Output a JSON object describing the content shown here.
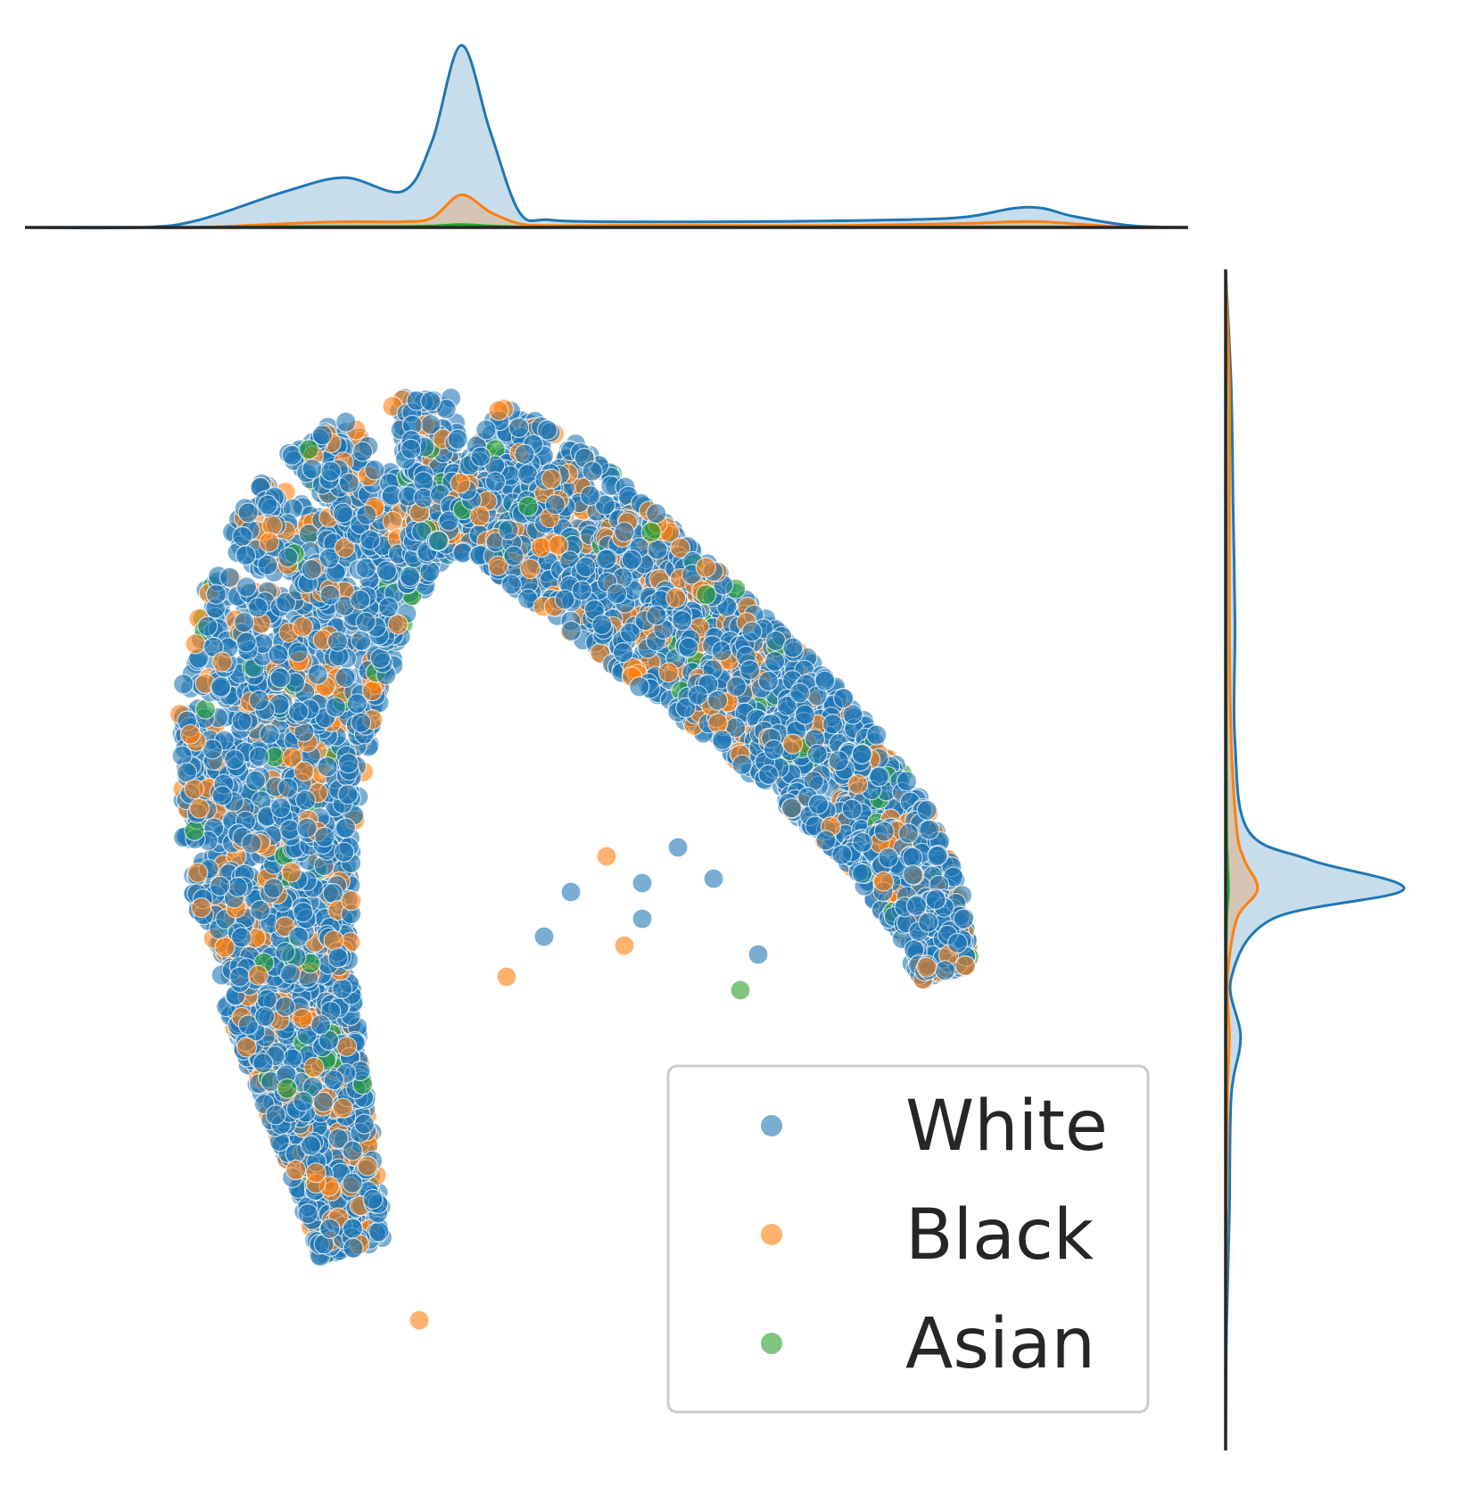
{
  "chart_data": {
    "type": "scatter",
    "title": "",
    "xlabel": "",
    "ylabel": "",
    "grid": false,
    "axes_visible": false,
    "xlim": [
      -1.0,
      1.0
    ],
    "ylim": [
      -1.0,
      1.0
    ],
    "legend": {
      "placement": "lower-right",
      "entries": [
        {
          "label": "White",
          "color": "#1f77b4"
        },
        {
          "label": "Black",
          "color": "#ff7f0e"
        },
        {
          "label": "Asian",
          "color": "#2ca02c"
        }
      ]
    },
    "series": [
      {
        "name": "White",
        "color": "#1f77b4",
        "approx_share": 0.82
      },
      {
        "name": "Black",
        "color": "#ff7f0e",
        "approx_share": 0.15
      },
      {
        "name": "Asian",
        "color": "#2ca02c",
        "approx_share": 0.03
      }
    ],
    "marginals": {
      "top": {
        "type": "kde",
        "x": [
          -1.0,
          -0.8,
          -0.7,
          -0.55,
          -0.45,
          -0.35,
          -0.3,
          -0.25,
          -0.2,
          -0.15,
          -0.1,
          0.0,
          0.2,
          0.4,
          0.6,
          0.7,
          0.75,
          0.8,
          0.9,
          1.0
        ],
        "White": [
          0.0,
          0.0,
          0.04,
          0.19,
          0.26,
          0.19,
          0.45,
          0.95,
          0.5,
          0.08,
          0.04,
          0.03,
          0.03,
          0.035,
          0.05,
          0.1,
          0.1,
          0.06,
          0.01,
          0.0
        ],
        "Black": [
          0.0,
          0.0,
          0.0,
          0.02,
          0.03,
          0.03,
          0.05,
          0.17,
          0.08,
          0.02,
          0.01,
          0.01,
          0.01,
          0.01,
          0.02,
          0.03,
          0.03,
          0.02,
          0.0,
          0.0
        ],
        "Asian": [
          0.0,
          0.0,
          0.0,
          0.005,
          0.005,
          0.005,
          0.008,
          0.015,
          0.008,
          0.003,
          0.002,
          0.002,
          0.002,
          0.002,
          0.003,
          0.003,
          0.003,
          0.002,
          0.0,
          0.0
        ]
      },
      "right": {
        "type": "kde",
        "y": [
          1.0,
          0.8,
          0.6,
          0.4,
          0.2,
          0.05,
          0.0,
          -0.05,
          -0.1,
          -0.2,
          -0.3,
          -0.4,
          -0.6,
          -0.8,
          -1.0
        ],
        "White": [
          0.0,
          0.03,
          0.04,
          0.05,
          0.05,
          0.12,
          0.45,
          0.95,
          0.25,
          0.03,
          0.08,
          0.03,
          0.02,
          0.005,
          0.0
        ],
        "Black": [
          0.0,
          0.02,
          0.02,
          0.02,
          0.03,
          0.06,
          0.1,
          0.17,
          0.06,
          0.01,
          0.02,
          0.01,
          0.005,
          0.0,
          0.0
        ],
        "Asian": [
          0.0,
          0.003,
          0.003,
          0.003,
          0.004,
          0.006,
          0.01,
          0.015,
          0.006,
          0.002,
          0.002,
          0.001,
          0.0,
          0.0,
          0.0
        ]
      }
    }
  }
}
